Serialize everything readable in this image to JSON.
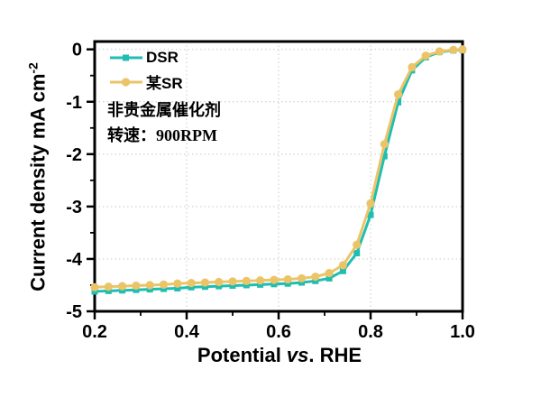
{
  "figure": {
    "y_axis_title": {
      "text": "Current density mA cm",
      "sup": "-2"
    },
    "x_axis_title": {
      "prefix": "Potential ",
      "vs": "vs",
      "suffix": ". RHE"
    },
    "annotation": {
      "line1": "非贵金属催化剂",
      "line2": "转速：900RPM"
    },
    "colors": {
      "frame": "#000000",
      "grid": "#c8c8c8",
      "background": "#ffffff"
    }
  },
  "chart_data": {
    "type": "line",
    "title": "",
    "xlabel": "Potential vs. RHE",
    "ylabel": "Current density mA cm^-2",
    "xlim": [
      0.2,
      1.0
    ],
    "ylim": [
      -5,
      0.15
    ],
    "grid": "dotted-at-major-ticks",
    "legend_position": "top-left-inside",
    "x_tick_values": [
      0.2,
      0.4,
      0.6,
      0.8,
      1.0
    ],
    "x_tick_labels": [
      "0.2",
      "0.4",
      "0.6",
      "0.8",
      "1.0"
    ],
    "x_minor_ticks": [
      0.3,
      0.5,
      0.7,
      0.9
    ],
    "y_tick_values": [
      0,
      -1,
      -2,
      -3,
      -4,
      -5
    ],
    "y_tick_labels": [
      "0",
      "-1",
      "-2",
      "-3",
      "-4",
      "-5"
    ],
    "y_minor_ticks": [
      -0.5,
      -1.5,
      -2.5,
      -3.5,
      -4.5
    ],
    "x": [
      0.2,
      0.23,
      0.26,
      0.29,
      0.32,
      0.35,
      0.38,
      0.41,
      0.44,
      0.47,
      0.5,
      0.53,
      0.56,
      0.59,
      0.62,
      0.65,
      0.68,
      0.71,
      0.74,
      0.77,
      0.8,
      0.83,
      0.86,
      0.89,
      0.92,
      0.95,
      0.98,
      1.0
    ],
    "series": [
      {
        "name": "DSR",
        "color": "#1fbeb1",
        "marker": "square",
        "values": [
          -4.62,
          -4.61,
          -4.6,
          -4.59,
          -4.58,
          -4.57,
          -4.56,
          -4.54,
          -4.53,
          -4.52,
          -4.51,
          -4.5,
          -4.49,
          -4.48,
          -4.47,
          -4.45,
          -4.42,
          -4.37,
          -4.23,
          -3.89,
          -3.16,
          -2.04,
          -1.01,
          -0.4,
          -0.15,
          -0.05,
          -0.02,
          -0.01
        ]
      },
      {
        "name": "某SR",
        "color": "#ebc468",
        "marker": "circle",
        "values": [
          -4.54,
          -4.53,
          -4.52,
          -4.51,
          -4.5,
          -4.49,
          -4.47,
          -4.46,
          -4.45,
          -4.44,
          -4.43,
          -4.42,
          -4.41,
          -4.4,
          -4.39,
          -4.37,
          -4.34,
          -4.27,
          -4.12,
          -3.73,
          -2.94,
          -1.81,
          -0.86,
          -0.34,
          -0.12,
          -0.04,
          -0.01,
          0.0
        ]
      }
    ],
    "annotations": [
      "非贵金属催化剂",
      "转速：900RPM"
    ]
  }
}
